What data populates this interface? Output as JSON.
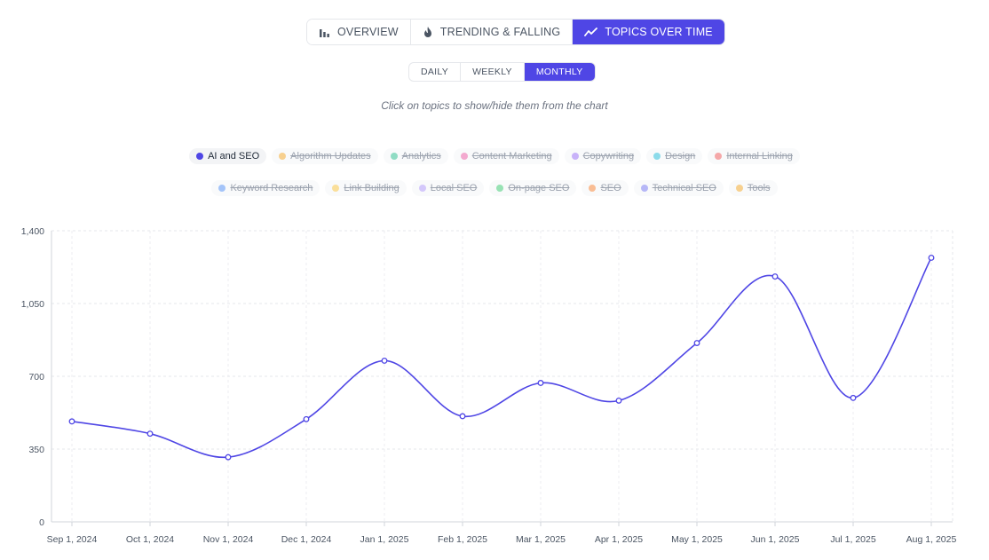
{
  "tabs": [
    {
      "label": "OVERVIEW",
      "icon": "bar-chart-icon",
      "active": false
    },
    {
      "label": "TRENDING & FALLING",
      "icon": "flame-icon",
      "active": false
    },
    {
      "label": "TOPICS OVER TIME",
      "icon": "trend-line-icon",
      "active": true
    }
  ],
  "periods": [
    {
      "label": "DAILY",
      "active": false
    },
    {
      "label": "WEEKLY",
      "active": false
    },
    {
      "label": "MONTHLY",
      "active": true
    }
  ],
  "hint": "Click on topics to show/hide them from the chart",
  "topics_row1": [
    {
      "label": "AI and SEO",
      "color": "#4f46e5",
      "active": true
    },
    {
      "label": "Algorithm Updates",
      "color": "#f59e0b",
      "active": false
    },
    {
      "label": "Analytics",
      "color": "#10b981",
      "active": false
    },
    {
      "label": "Content Marketing",
      "color": "#ec4899",
      "active": false
    },
    {
      "label": "Copywriting",
      "color": "#8b5cf6",
      "active": false
    },
    {
      "label": "Design",
      "color": "#06b6d4",
      "active": false
    },
    {
      "label": "Internal Linking",
      "color": "#ef4444",
      "active": false
    }
  ],
  "topics_row2": [
    {
      "label": "Keyword Research",
      "color": "#3b82f6",
      "active": false
    },
    {
      "label": "Link Building",
      "color": "#fbbf24",
      "active": false
    },
    {
      "label": "Local SEO",
      "color": "#a78bfa",
      "active": false
    },
    {
      "label": "On-page SEO",
      "color": "#22c55e",
      "active": false
    },
    {
      "label": "SEO",
      "color": "#f97316",
      "active": false
    },
    {
      "label": "Technical SEO",
      "color": "#6366f1",
      "active": false
    },
    {
      "label": "Tools",
      "color": "#f59e0b",
      "active": false
    }
  ],
  "chart_data": {
    "type": "line",
    "categories": [
      "Sep 1, 2024",
      "Oct 1, 2024",
      "Nov 1, 2024",
      "Dec 1, 2024",
      "Jan 1, 2025",
      "Feb 1, 2025",
      "Mar 1, 2025",
      "Apr 1, 2025",
      "May 1, 2025",
      "Jun 1, 2025",
      "Jul 1, 2025",
      "Aug 1, 2025"
    ],
    "series": [
      {
        "name": "AI and SEO",
        "color": "#4f46e5",
        "values": [
          483,
          424,
          311,
          494,
          775,
          508,
          668,
          583,
          860,
          1180,
          596,
          1270
        ]
      }
    ],
    "ylim": [
      0,
      1400
    ],
    "yticks": [
      "0",
      "350",
      "700",
      "1,050",
      "1,400"
    ],
    "ytick_values": [
      0,
      350,
      700,
      1050,
      1400
    ],
    "grid": true,
    "legend": "top-center"
  }
}
